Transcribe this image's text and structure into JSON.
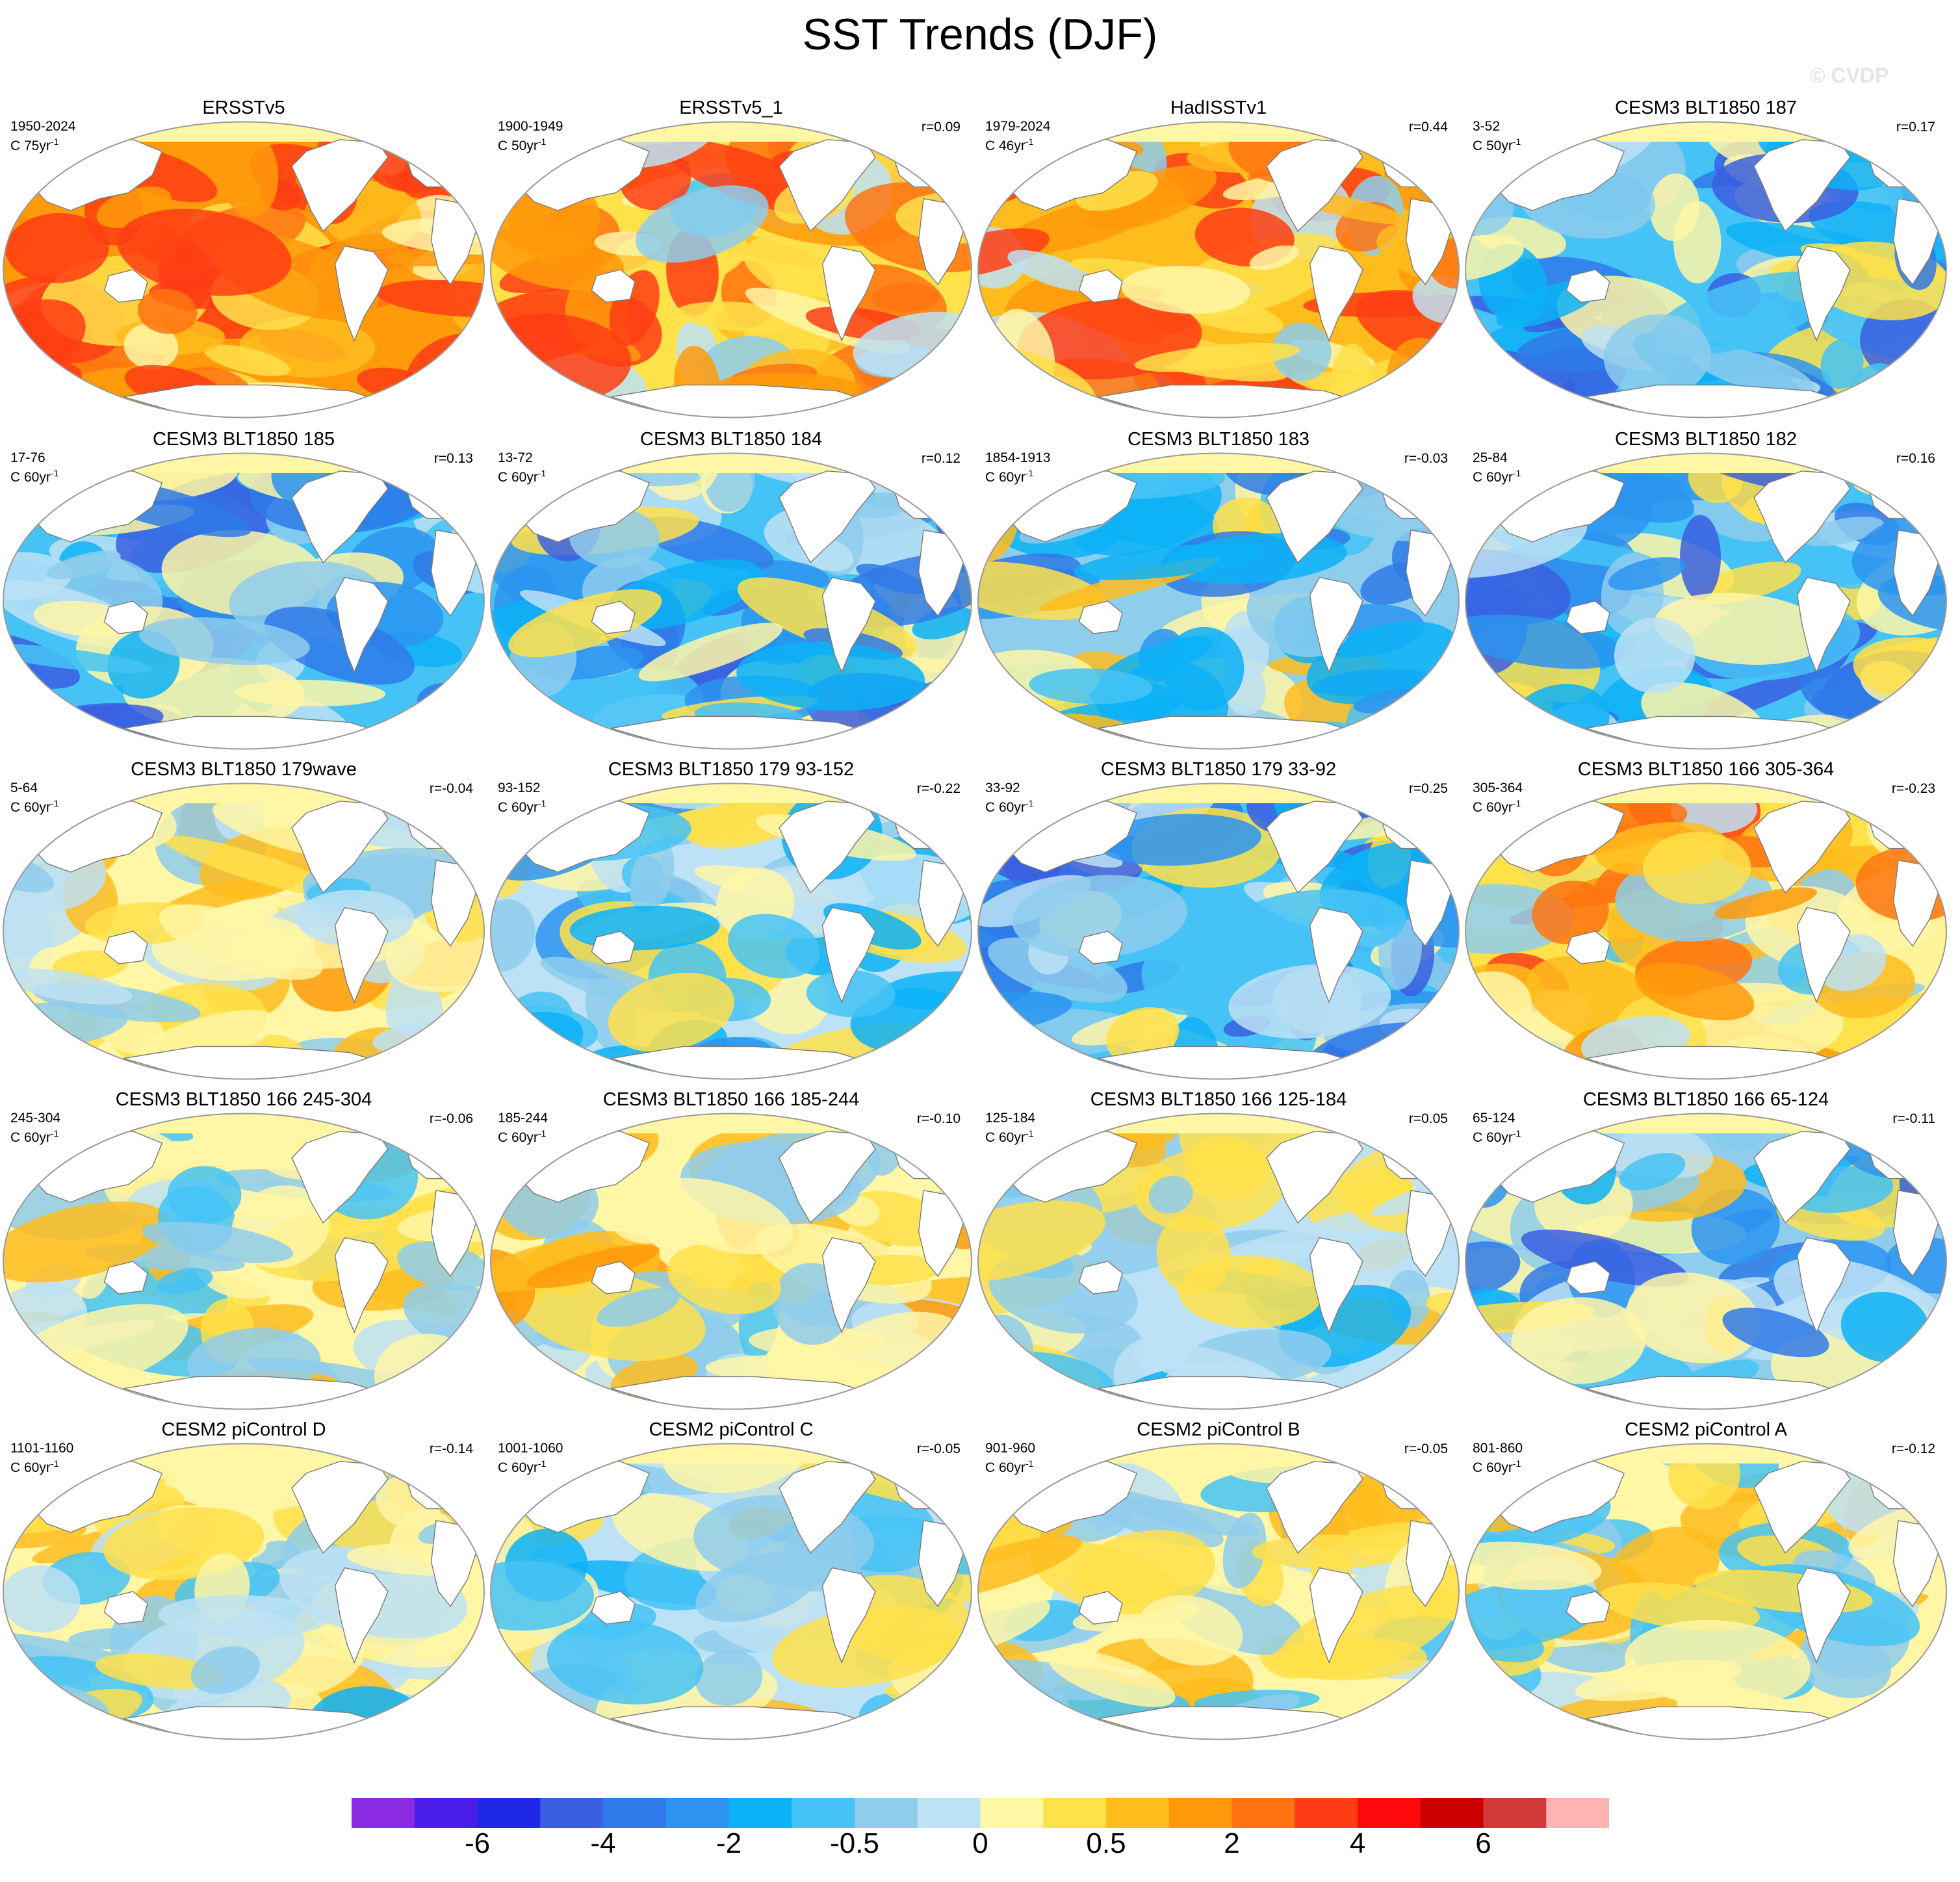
{
  "title": "SST Trends (DJF)",
  "watermark": "© CVDP",
  "colorbar": {
    "colors": [
      "#8a2be2",
      "#4b1de8",
      "#1e29e8",
      "#3a5fe0",
      "#2f7ae8",
      "#2c94f0",
      "#0cb2f7",
      "#45c3f6",
      "#8ecdec",
      "#bde2f5",
      "#fff6a6",
      "#ffe14a",
      "#ffbc1d",
      "#ff9a0a",
      "#ff7410",
      "#ff3d14",
      "#ff0a0a",
      "#cc0000",
      "#d13a3a",
      "#ffb3b3"
    ],
    "tick_labels": [
      "-6",
      "-4",
      "-2",
      "-0.5",
      "0",
      "0.5",
      "2",
      "4",
      "6"
    ],
    "tick_boundary_index": [
      2,
      4,
      6,
      8,
      10,
      12,
      14,
      16,
      18
    ]
  },
  "chart_data": [
    {
      "type": "heatmap",
      "title": "ERSSTv5",
      "years": "1950-2024",
      "units": "C 75yr",
      "units_sup": "-1",
      "corr": "",
      "mean_level": 0.62,
      "dominant": "warm"
    },
    {
      "type": "heatmap",
      "title": "ERSSTv5_1",
      "years": "1900-1949",
      "units": "C 50yr",
      "units_sup": "-1",
      "corr": "r=0.09",
      "mean_level": 0.35,
      "dominant": "warm"
    },
    {
      "type": "heatmap",
      "title": "HadISSTv1",
      "years": "1979-2024",
      "units": "C 46yr",
      "units_sup": "-1",
      "corr": "r=0.44",
      "mean_level": 0.45,
      "dominant": "warm"
    },
    {
      "type": "heatmap",
      "title": "CESM3 BLT1850 187",
      "years": "3-52",
      "units": "C 50yr",
      "units_sup": "-1",
      "corr": "r=0.17",
      "mean_level": -0.45,
      "dominant": "cool"
    },
    {
      "type": "heatmap",
      "title": "CESM3 BLT1850 185",
      "years": "17-76",
      "units": "C 60yr",
      "units_sup": "-1",
      "corr": "r=0.13",
      "mean_level": -0.45,
      "dominant": "cool"
    },
    {
      "type": "heatmap",
      "title": "CESM3 BLT1850 184",
      "years": "13-72",
      "units": "C 60yr",
      "units_sup": "-1",
      "corr": "r=0.12",
      "mean_level": -0.35,
      "dominant": "cool"
    },
    {
      "type": "heatmap",
      "title": "CESM3 BLT1850 183",
      "years": "1854-1913",
      "units": "C 60yr",
      "units_sup": "-1",
      "corr": "r=-0.03",
      "mean_level": -0.2,
      "dominant": "cool"
    },
    {
      "type": "heatmap",
      "title": "CESM3 BLT1850 182",
      "years": "25-84",
      "units": "C 60yr",
      "units_sup": "-1",
      "corr": "r=0.16",
      "mean_level": -0.35,
      "dominant": "cool"
    },
    {
      "type": "heatmap",
      "title": "CESM3 BLT1850 179wave",
      "years": "5-64",
      "units": "C 60yr",
      "units_sup": "-1",
      "corr": "r=-0.04",
      "mean_level": 0.1,
      "dominant": "mixed"
    },
    {
      "type": "heatmap",
      "title": "CESM3 BLT1850 179 93-152",
      "years": "93-152",
      "units": "C 60yr",
      "units_sup": "-1",
      "corr": "r=-0.22",
      "mean_level": -0.15,
      "dominant": "mixed"
    },
    {
      "type": "heatmap",
      "title": "CESM3 BLT1850 179 33-92",
      "years": "33-92",
      "units": "C 60yr",
      "units_sup": "-1",
      "corr": "r=0.25",
      "mean_level": -0.4,
      "dominant": "cool"
    },
    {
      "type": "heatmap",
      "title": "CESM3 BLT1850 166 305-364",
      "years": "305-364",
      "units": "C 60yr",
      "units_sup": "-1",
      "corr": "r=-0.23",
      "mean_level": 0.3,
      "dominant": "warm"
    },
    {
      "type": "heatmap",
      "title": "CESM3 BLT1850 166 245-304",
      "years": "245-304",
      "units": "C 60yr",
      "units_sup": "-1",
      "corr": "r=-0.06",
      "mean_level": 0.05,
      "dominant": "mixed"
    },
    {
      "type": "heatmap",
      "title": "CESM3 BLT1850 166 185-244",
      "years": "185-244",
      "units": "C 60yr",
      "units_sup": "-1",
      "corr": "r=-0.10",
      "mean_level": 0.15,
      "dominant": "mixed"
    },
    {
      "type": "heatmap",
      "title": "CESM3 BLT1850 166 125-184",
      "years": "125-184",
      "units": "C 60yr",
      "units_sup": "-1",
      "corr": "r=0.05",
      "mean_level": -0.05,
      "dominant": "mixed"
    },
    {
      "type": "heatmap",
      "title": "CESM3 BLT1850 166 65-124",
      "years": "65-124",
      "units": "C 60yr",
      "units_sup": "-1",
      "corr": "r=-0.11",
      "mean_level": -0.25,
      "dominant": "cool"
    },
    {
      "type": "heatmap",
      "title": "CESM2 piControl D",
      "years": "1101-1160",
      "units": "C 60yr",
      "units_sup": "-1",
      "corr": "r=-0.14",
      "mean_level": 0.0,
      "dominant": "mixed"
    },
    {
      "type": "heatmap",
      "title": "CESM2 piControl C",
      "years": "1001-1060",
      "units": "C 60yr",
      "units_sup": "-1",
      "corr": "r=-0.05",
      "mean_level": -0.05,
      "dominant": "mixed"
    },
    {
      "type": "heatmap",
      "title": "CESM2 piControl B",
      "years": "901-960",
      "units": "C 60yr",
      "units_sup": "-1",
      "corr": "r=-0.05",
      "mean_level": 0.05,
      "dominant": "mixed"
    },
    {
      "type": "heatmap",
      "title": "CESM2 piControl A",
      "years": "801-860",
      "units": "C 60yr",
      "units_sup": "-1",
      "corr": "r=-0.12",
      "mean_level": 0.0,
      "dominant": "mixed"
    }
  ]
}
